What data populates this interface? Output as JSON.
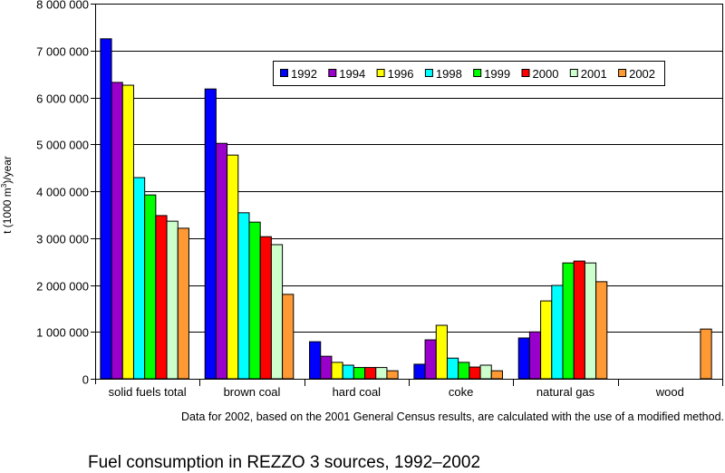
{
  "chart_data": {
    "type": "bar",
    "title": "Fuel consumption in REZZO 3 sources, 1992–2002",
    "note": "Data for 2002, based on the 2001 General Census results, are calculated with the use of a modified method.",
    "xlabel": "",
    "ylabel_prefix": "t (1000 m",
    "ylabel_sup": "3",
    "ylabel_suffix": ")/year",
    "ylim": [
      0,
      8000000
    ],
    "yticks": [
      0,
      1000000,
      2000000,
      3000000,
      4000000,
      5000000,
      6000000,
      7000000,
      8000000
    ],
    "ytick_labels": [
      "0",
      "1 000 000",
      "2 000 000",
      "3 000 000",
      "4 000 000",
      "5 000 000",
      "6 000 000",
      "7 000 000",
      "8 000 000"
    ],
    "grid": true,
    "legend_position": "top-right",
    "categories": [
      "solid fuels total",
      "brown coal",
      "hard coal",
      "coke",
      "natural gas",
      "wood"
    ],
    "series": [
      {
        "name": "1992",
        "color": "#0000ff",
        "values": [
          7250000,
          6180000,
          790000,
          310000,
          870000,
          0
        ]
      },
      {
        "name": "1994",
        "color": "#9900cc",
        "values": [
          6320000,
          5020000,
          480000,
          830000,
          1000000,
          0
        ]
      },
      {
        "name": "1996",
        "color": "#ffff00",
        "values": [
          6260000,
          4770000,
          350000,
          1140000,
          1660000,
          0
        ]
      },
      {
        "name": "1998",
        "color": "#00ffff",
        "values": [
          4290000,
          3540000,
          290000,
          440000,
          1990000,
          0
        ]
      },
      {
        "name": "1999",
        "color": "#00ff00",
        "values": [
          3920000,
          3340000,
          240000,
          350000,
          2470000,
          0
        ]
      },
      {
        "name": "2000",
        "color": "#ff0000",
        "values": [
          3480000,
          3030000,
          240000,
          250000,
          2510000,
          0
        ]
      },
      {
        "name": "2001",
        "color": "#ccffcc",
        "values": [
          3360000,
          2860000,
          240000,
          290000,
          2470000,
          0
        ]
      },
      {
        "name": "2002",
        "color": "#ff9933",
        "values": [
          3210000,
          1800000,
          170000,
          170000,
          2070000,
          1060000
        ]
      }
    ]
  }
}
